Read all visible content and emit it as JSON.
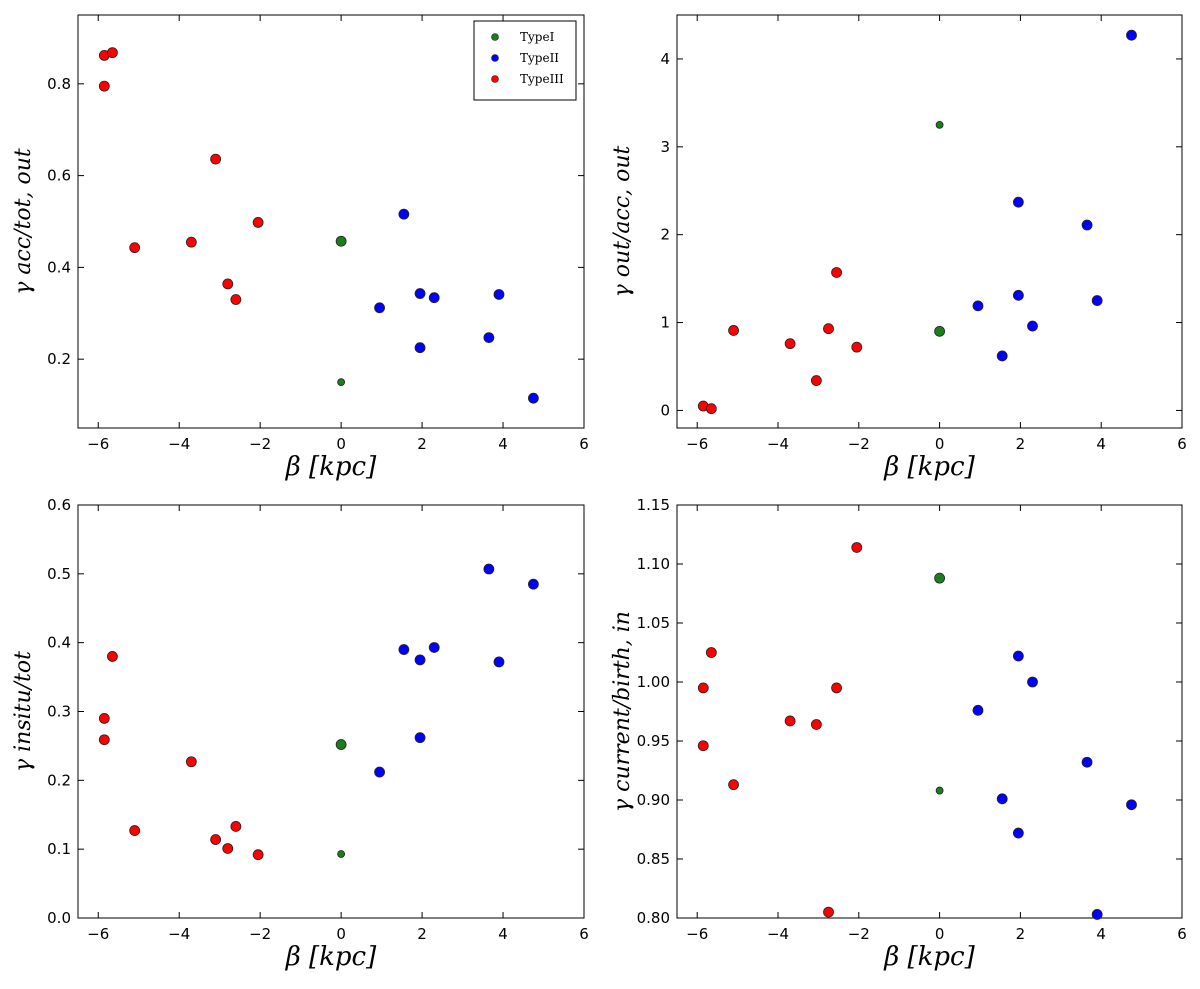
{
  "chart_data": [
    {
      "type": "scatter",
      "title": "",
      "xlabel": "β [kpc]",
      "ylabel": "γ acc/tot, out",
      "xlim": [
        -6.5,
        6
      ],
      "ylim": [
        0.05,
        0.95
      ],
      "xticks": [
        -6,
        -4,
        -2,
        0,
        2,
        4,
        6
      ],
      "yticks": [
        0.2,
        0.4,
        0.6,
        0.8
      ],
      "ytick_labels": [
        "0.2",
        "0.4",
        "0.6",
        "0.8"
      ],
      "legend": {
        "placement": "top-right",
        "entries": [
          {
            "name": "TypeI",
            "color": "#1a7f1a"
          },
          {
            "name": "TypeII",
            "color": "#0000ff"
          },
          {
            "name": "TypeIII",
            "color": "#ff0000"
          }
        ]
      },
      "series": [
        {
          "name": "TypeI",
          "color": "#1a7f1a",
          "points": [
            {
              "x": 0.0,
              "y": 0.457,
              "size": "large"
            },
            {
              "x": 0.0,
              "y": 0.15,
              "size": "small"
            }
          ]
        },
        {
          "name": "TypeII",
          "color": "#0000ff",
          "points": [
            {
              "x": 0.95,
              "y": 0.312
            },
            {
              "x": 1.55,
              "y": 0.516
            },
            {
              "x": 1.95,
              "y": 0.343
            },
            {
              "x": 1.95,
              "y": 0.225
            },
            {
              "x": 2.3,
              "y": 0.334
            },
            {
              "x": 3.65,
              "y": 0.247
            },
            {
              "x": 3.9,
              "y": 0.341
            },
            {
              "x": 4.75,
              "y": 0.115
            }
          ]
        },
        {
          "name": "TypeIII",
          "color": "#ff0000",
          "points": [
            {
              "x": -5.85,
              "y": 0.862
            },
            {
              "x": -5.65,
              "y": 0.868
            },
            {
              "x": -5.85,
              "y": 0.795
            },
            {
              "x": -5.1,
              "y": 0.443
            },
            {
              "x": -3.7,
              "y": 0.455
            },
            {
              "x": -3.1,
              "y": 0.636
            },
            {
              "x": -2.8,
              "y": 0.364
            },
            {
              "x": -2.6,
              "y": 0.33
            },
            {
              "x": -2.05,
              "y": 0.498
            }
          ]
        }
      ]
    },
    {
      "type": "scatter",
      "title": "",
      "xlabel": "β [kpc]",
      "ylabel": "γ out/acc, out",
      "xlim": [
        -6.5,
        6
      ],
      "ylim": [
        -0.2,
        4.5
      ],
      "xticks": [
        -6,
        -4,
        -2,
        0,
        2,
        4,
        6
      ],
      "yticks": [
        0,
        1,
        2,
        3,
        4
      ],
      "ytick_labels": [
        "0",
        "1",
        "2",
        "3",
        "4"
      ],
      "series": [
        {
          "name": "TypeI",
          "color": "#1a7f1a",
          "points": [
            {
              "x": 0.0,
              "y": 0.9,
              "size": "large"
            },
            {
              "x": 0.0,
              "y": 3.25,
              "size": "small"
            }
          ]
        },
        {
          "name": "TypeII",
          "color": "#0000ff",
          "points": [
            {
              "x": 0.95,
              "y": 1.19
            },
            {
              "x": 1.55,
              "y": 0.62
            },
            {
              "x": 1.95,
              "y": 1.31
            },
            {
              "x": 1.95,
              "y": 2.37
            },
            {
              "x": 2.3,
              "y": 0.96
            },
            {
              "x": 3.65,
              "y": 2.11
            },
            {
              "x": 3.9,
              "y": 1.25
            },
            {
              "x": 4.75,
              "y": 4.27
            }
          ]
        },
        {
          "name": "TypeIII",
          "color": "#ff0000",
          "points": [
            {
              "x": -5.85,
              "y": 0.05
            },
            {
              "x": -5.65,
              "y": 0.02
            },
            {
              "x": -5.1,
              "y": 0.91
            },
            {
              "x": -3.7,
              "y": 0.76
            },
            {
              "x": -3.05,
              "y": 0.34
            },
            {
              "x": -2.75,
              "y": 0.93
            },
            {
              "x": -2.55,
              "y": 1.57
            },
            {
              "x": -2.05,
              "y": 0.72
            }
          ]
        }
      ]
    },
    {
      "type": "scatter",
      "title": "",
      "xlabel": "β [kpc]",
      "ylabel": "γ insitu/tot",
      "xlim": [
        -6.5,
        6
      ],
      "ylim": [
        0.0,
        0.6
      ],
      "xticks": [
        -6,
        -4,
        -2,
        0,
        2,
        4,
        6
      ],
      "yticks": [
        0.0,
        0.1,
        0.2,
        0.3,
        0.4,
        0.5,
        0.6
      ],
      "ytick_labels": [
        "0.0",
        "0.1",
        "0.2",
        "0.3",
        "0.4",
        "0.5",
        "0.6"
      ],
      "series": [
        {
          "name": "TypeI",
          "color": "#1a7f1a",
          "points": [
            {
              "x": 0.0,
              "y": 0.252,
              "size": "large"
            },
            {
              "x": 0.0,
              "y": 0.093,
              "size": "small"
            }
          ]
        },
        {
          "name": "TypeII",
          "color": "#0000ff",
          "points": [
            {
              "x": 0.95,
              "y": 0.212
            },
            {
              "x": 1.55,
              "y": 0.39
            },
            {
              "x": 1.95,
              "y": 0.375
            },
            {
              "x": 1.95,
              "y": 0.262
            },
            {
              "x": 2.3,
              "y": 0.393
            },
            {
              "x": 3.65,
              "y": 0.507
            },
            {
              "x": 3.9,
              "y": 0.372
            },
            {
              "x": 4.75,
              "y": 0.485
            }
          ]
        },
        {
          "name": "TypeIII",
          "color": "#ff0000",
          "points": [
            {
              "x": -5.85,
              "y": 0.29
            },
            {
              "x": -5.65,
              "y": 0.38
            },
            {
              "x": -5.85,
              "y": 0.259
            },
            {
              "x": -5.1,
              "y": 0.127
            },
            {
              "x": -3.7,
              "y": 0.227
            },
            {
              "x": -3.1,
              "y": 0.114
            },
            {
              "x": -2.8,
              "y": 0.101
            },
            {
              "x": -2.6,
              "y": 0.133
            },
            {
              "x": -2.05,
              "y": 0.092
            }
          ]
        }
      ]
    },
    {
      "type": "scatter",
      "title": "",
      "xlabel": "β [kpc]",
      "ylabel": "γ current/birth, in",
      "xlim": [
        -6.5,
        6
      ],
      "ylim": [
        0.8,
        1.15
      ],
      "xticks": [
        -6,
        -4,
        -2,
        0,
        2,
        4,
        6
      ],
      "yticks": [
        0.8,
        0.85,
        0.9,
        0.95,
        1.0,
        1.05,
        1.1,
        1.15
      ],
      "ytick_labels": [
        "0.80",
        "0.85",
        "0.90",
        "0.95",
        "1.00",
        "1.05",
        "1.10",
        "1.15"
      ],
      "series": [
        {
          "name": "TypeI",
          "color": "#1a7f1a",
          "points": [
            {
              "x": 0.0,
              "y": 1.088,
              "size": "large"
            },
            {
              "x": 0.0,
              "y": 0.908,
              "size": "small"
            }
          ]
        },
        {
          "name": "TypeII",
          "color": "#0000ff",
          "points": [
            {
              "x": 0.95,
              "y": 0.976
            },
            {
              "x": 1.55,
              "y": 0.901
            },
            {
              "x": 1.95,
              "y": 1.022
            },
            {
              "x": 1.95,
              "y": 0.872
            },
            {
              "x": 2.3,
              "y": 1.0
            },
            {
              "x": 3.65,
              "y": 0.932
            },
            {
              "x": 3.9,
              "y": 0.803
            },
            {
              "x": 4.75,
              "y": 0.896
            }
          ]
        },
        {
          "name": "TypeIII",
          "color": "#ff0000",
          "points": [
            {
              "x": -5.85,
              "y": 0.995
            },
            {
              "x": -5.65,
              "y": 1.025
            },
            {
              "x": -5.85,
              "y": 0.946
            },
            {
              "x": -5.1,
              "y": 0.913
            },
            {
              "x": -3.7,
              "y": 0.967
            },
            {
              "x": -3.05,
              "y": 0.964
            },
            {
              "x": -2.75,
              "y": 0.805
            },
            {
              "x": -2.55,
              "y": 0.995
            },
            {
              "x": -2.05,
              "y": 1.114
            }
          ]
        }
      ]
    }
  ]
}
